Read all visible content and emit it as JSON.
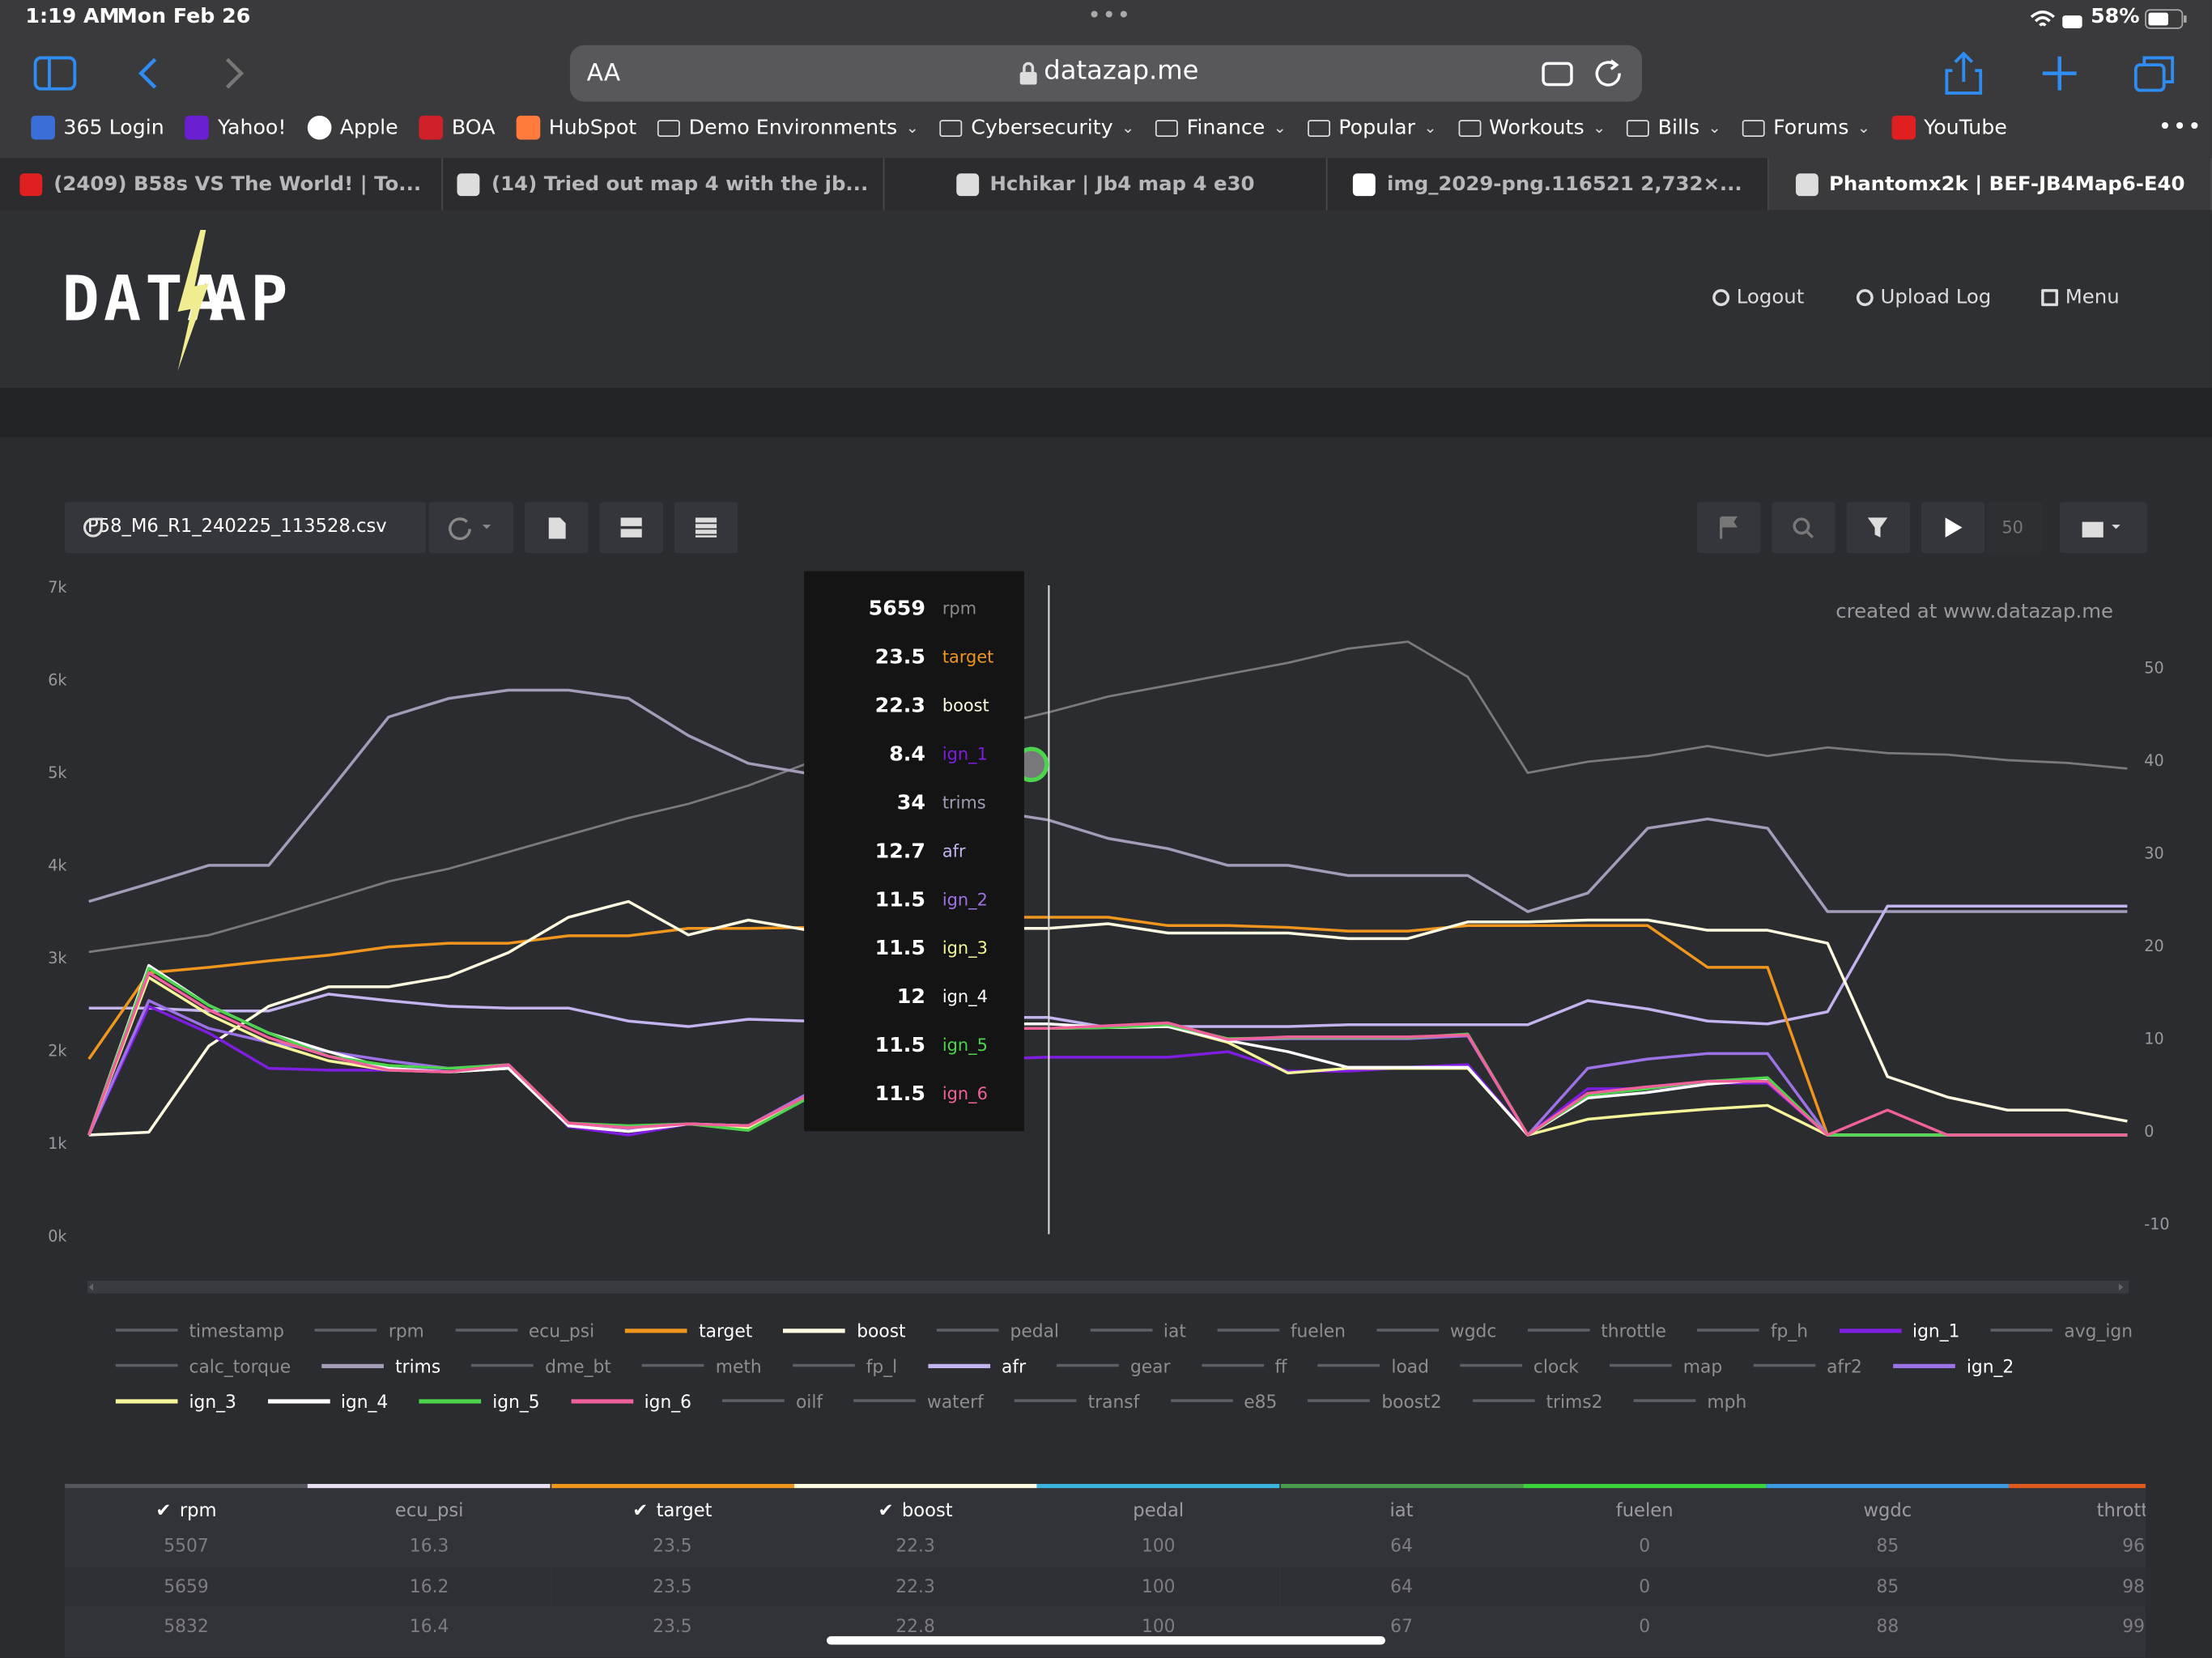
{
  "status": {
    "time": "1:19 AM",
    "date": "Mon Feb 26",
    "battery": "58%"
  },
  "browser": {
    "text_size": "AA",
    "url": "datazap.me",
    "bookmarks": [
      "365 Login",
      "Yahoo!",
      "Apple",
      "BOA",
      "HubSpot",
      "Demo Environments",
      "Cybersecurity",
      "Finance",
      "Popular",
      "Workouts",
      "Bills",
      "Forums",
      "YouTube"
    ],
    "tabs": [
      "(2409) B58s VS The World! | To...",
      "(14) Tried out map 4 with the jb...",
      "Hchikar | Jb4 map 4 e30",
      "img_2029-png.116521 2,732×...",
      "Phantomx2k | BEF-JB4Map6-E40"
    ]
  },
  "site": {
    "logo": {
      "left": "DATA",
      "right": "AP"
    },
    "nav": [
      "Logout",
      "Upload Log",
      "Menu"
    ]
  },
  "toolbar": {
    "file": "P58_M6_R1_240225_113528.csv",
    "speed": 50
  },
  "chart_data": {
    "type": "line",
    "watermark": "created at www.datazap.me",
    "categories": [
      null,
      null,
      null,
      null,
      null,
      null,
      null,
      null,
      null,
      null,
      null,
      null,
      null,
      null,
      null,
      null,
      null,
      null,
      null,
      null,
      null,
      null,
      null,
      null,
      null,
      null,
      null,
      null,
      null,
      null,
      null,
      null,
      null,
      null,
      null
    ],
    "ylim": [
      0,
      7000
    ],
    "yticks": [
      {
        "value": 0,
        "label": "0k"
      },
      {
        "value": 1000,
        "label": "1k"
      },
      {
        "value": 2000,
        "label": "2k"
      },
      {
        "value": 3000,
        "label": "3k"
      },
      {
        "value": 4000,
        "label": "4k"
      },
      {
        "value": 5000,
        "label": "5k"
      },
      {
        "value": 6000,
        "label": "6k"
      },
      {
        "value": 7000,
        "label": "7k"
      }
    ],
    "y2lim": [
      -11,
      59
    ],
    "y2ticks": [
      -10,
      0,
      10,
      20,
      30,
      40,
      50
    ],
    "series": [
      {
        "name": "rpm",
        "color": "#7a7a7e",
        "values": [
          3075,
          3166,
          3257,
          3440,
          3638,
          3836,
          3973,
          4155,
          4338,
          4521,
          4673,
          4871,
          5114,
          5250,
          5380,
          5507,
          5659,
          5832,
          5951,
          6073,
          6195,
          6347,
          6423,
          6043,
          5008,
          5129,
          5190,
          5297,
          5190,
          5282,
          5221,
          5205,
          5145,
          5114,
          5053
        ]
      },
      {
        "name": "target",
        "color": "#f0961e",
        "axis": "y2",
        "values": [
          8.2,
          17.5,
          18.1,
          18.8,
          19.4,
          20.3,
          20.7,
          20.7,
          21.5,
          21.5,
          22.3,
          22.3,
          22.4,
          23,
          23.3,
          23.5,
          23.5,
          23.5,
          22.6,
          22.6,
          22.4,
          22.0,
          22.0,
          22.6,
          22.6,
          22.6,
          22.6,
          18.1,
          18.1,
          0,
          0,
          0,
          0,
          0,
          0
        ]
      },
      {
        "name": "boost",
        "color": "#fffbe0",
        "axis": "y2",
        "values": [
          0,
          0.3,
          9.6,
          13.9,
          16.0,
          16.0,
          17.1,
          19.7,
          23.5,
          25.2,
          21.6,
          23.2,
          22.1,
          22.2,
          22.3,
          22.3,
          22.3,
          22.8,
          21.8,
          21.8,
          21.8,
          21.2,
          21.2,
          23.0,
          23.0,
          23.2,
          23.2,
          22.1,
          22.1,
          20.7,
          6.3,
          4.1,
          2.7,
          2.7,
          1.5
        ]
      },
      {
        "name": "ign_1",
        "color": "#7f1de0",
        "axis": "y2",
        "values": [
          0,
          13.9,
          11.0,
          7.2,
          7.0,
          7.0,
          7.2,
          7.6,
          0.9,
          0,
          1.2,
          0.9,
          4.1,
          6,
          7.5,
          8.2,
          8.4,
          8.4,
          8.4,
          9.0,
          6.9,
          6.9,
          7.3,
          7.6,
          0,
          5.0,
          5.0,
          5.6,
          5.6,
          0,
          0,
          0,
          0,
          0,
          0
        ]
      },
      {
        "name": "trims",
        "color": "#a39cb8",
        "axis": "y2",
        "values": [
          25.2,
          27.1,
          29.1,
          29.1,
          37.0,
          45.1,
          47.1,
          48.0,
          48.0,
          47.1,
          43.1,
          40.1,
          39.0,
          38,
          36,
          35,
          34,
          32.0,
          30.9,
          29.1,
          29.1,
          28.0,
          28.0,
          28.0,
          24.1,
          26.1,
          33.1,
          34.1,
          33.1,
          24.1,
          24.1,
          24.1,
          24.1,
          24.1,
          24.1
        ]
      },
      {
        "name": "afr",
        "color": "#c3b3ee",
        "axis": "y2",
        "values": [
          13.7,
          13.7,
          13.4,
          13.4,
          15.2,
          14.5,
          13.9,
          13.7,
          13.7,
          12.3,
          11.7,
          12.5,
          12.3,
          12.5,
          12.6,
          12.7,
          12.7,
          11.6,
          11.7,
          11.7,
          11.7,
          11.9,
          11.9,
          11.9,
          11.9,
          14.5,
          13.6,
          12.3,
          12.0,
          13.3,
          24.7,
          24.7,
          24.7,
          24.7,
          24.7
        ]
      },
      {
        "name": "ign_2",
        "color": "#9d72e6",
        "axis": "y2",
        "values": [
          0,
          14.5,
          11.5,
          10,
          9,
          8,
          7.2,
          7.5,
          1,
          0.5,
          1.2,
          1,
          4.5,
          8,
          10.5,
          11.5,
          11.5,
          11.6,
          11.7,
          10.3,
          10.4,
          10.4,
          10.4,
          10.7,
          0,
          7.2,
          8.2,
          8.8,
          8.8,
          0,
          0,
          0,
          0,
          0,
          0
        ]
      },
      {
        "name": "ign_3",
        "color": "#f5f59a",
        "axis": "y2",
        "values": [
          0,
          17,
          13,
          10,
          8,
          7,
          6.8,
          7.2,
          1,
          0.4,
          1.2,
          0.7,
          4.2,
          8,
          10.5,
          11.5,
          11.5,
          11.6,
          11.7,
          10,
          6.7,
          7.2,
          7.2,
          7.2,
          0,
          1.7,
          2.3,
          2.8,
          3.2,
          0,
          0,
          0,
          0,
          0,
          0
        ]
      },
      {
        "name": "ign_4",
        "color": "#ffffff",
        "axis": "y2",
        "values": [
          0,
          18.3,
          14,
          11,
          9,
          7.2,
          6.8,
          7.2,
          1,
          0.4,
          1.2,
          1,
          4.2,
          8,
          11,
          12,
          12,
          11.6,
          11.7,
          10.2,
          9,
          7.3,
          7.3,
          7.3,
          0,
          4,
          4.6,
          5.5,
          6,
          0,
          0,
          0,
          0,
          0,
          0
        ]
      },
      {
        "name": "ign_5",
        "color": "#4cd44c",
        "axis": "y2",
        "values": [
          0,
          18,
          14,
          11,
          8.5,
          7.5,
          7.2,
          7.6,
          1.3,
          1,
          1.2,
          0.5,
          4,
          8,
          10.5,
          11.5,
          11.5,
          11.6,
          11.9,
          10.4,
          10.5,
          10.5,
          10.5,
          10.9,
          0,
          4.3,
          5,
          5.8,
          6.2,
          0,
          0,
          0,
          0,
          0,
          0
        ]
      },
      {
        "name": "ign_6",
        "color": "#f0609a",
        "axis": "y2",
        "values": [
          0,
          17.5,
          13.5,
          10.5,
          8.5,
          7,
          6.8,
          7.6,
          1.3,
          0.8,
          1.2,
          1,
          4.3,
          8,
          10.5,
          11.5,
          11.5,
          11.8,
          12.1,
          10.3,
          10.6,
          10.6,
          10.6,
          10.8,
          0,
          4.5,
          5.2,
          5.8,
          5.8,
          0,
          2.7,
          0,
          0,
          0,
          0
        ]
      }
    ],
    "legend": [
      "timestamp",
      "rpm",
      "ecu_psi",
      "target",
      "boost",
      "pedal",
      "iat",
      "fuelen",
      "wgdc",
      "throttle",
      "fp_h",
      "ign_1",
      "avg_ign",
      "calc_torque",
      "trims",
      "dme_bt",
      "meth",
      "fp_l",
      "afr",
      "gear",
      "ff",
      "load",
      "clock",
      "map",
      "afr2",
      "ign_2",
      "ign_3",
      "ign_4",
      "ign_5",
      "ign_6",
      "oilf",
      "waterf",
      "transf",
      "e85",
      "boost2",
      "trims2",
      "mph"
    ]
  },
  "table": {
    "columns": [
      {
        "name": "rpm",
        "color": "#55565c"
      },
      {
        "name": "ecu_psi",
        "color": "#e8e0f0"
      },
      {
        "name": "target",
        "color": "#f0961e"
      },
      {
        "name": "boost",
        "color": "#fffbe0"
      },
      {
        "name": "pedal",
        "color": "#3cb4e0"
      },
      {
        "name": "iat",
        "color": "#4c9a4c"
      },
      {
        "name": "fuelen",
        "color": "#3cd43c"
      },
      {
        "name": "wgdc",
        "color": "#3c9ae0"
      },
      {
        "name": "throttle",
        "color": "#e05a1e"
      }
    ],
    "rows": [
      [
        5507,
        16.3,
        23.5,
        22.3,
        100,
        64,
        0,
        85,
        96
      ],
      [
        5659,
        16.2,
        23.5,
        22.3,
        100,
        64,
        0,
        85,
        98
      ],
      [
        5832,
        16.4,
        23.5,
        22.8,
        100,
        67,
        0,
        88,
        99
      ]
    ]
  }
}
